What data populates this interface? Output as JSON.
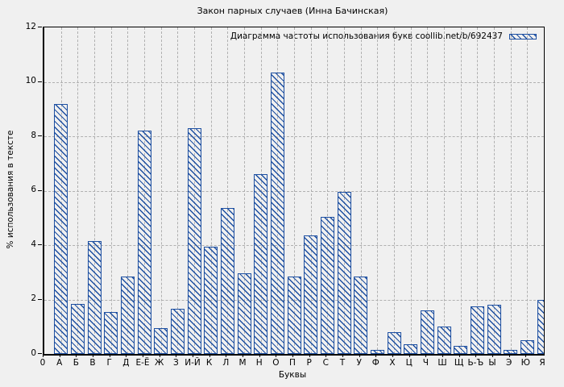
{
  "chart_data": {
    "type": "bar",
    "title": "Закон парных случаев (Инна Бачинская)",
    "legend_label": "Диаграмма частоты использования букв coollib.net/b/692437",
    "legend_position": "top-right-inside",
    "xlabel": "Буквы",
    "ylabel": "% использования в тексте",
    "x_origin_label": "0",
    "categories": [
      "А",
      "Б",
      "В",
      "Г",
      "Д",
      "Е-Ё",
      "Ж",
      "З",
      "И-Й",
      "К",
      "Л",
      "М",
      "Н",
      "О",
      "П",
      "Р",
      "С",
      "Т",
      "У",
      "Ф",
      "Х",
      "Ц",
      "Ч",
      "Ш",
      "Щ",
      "Ь-Ъ",
      "Ы",
      "Э",
      "Ю",
      "Я"
    ],
    "values": [
      9.2,
      1.85,
      4.15,
      1.55,
      2.85,
      8.2,
      0.95,
      1.65,
      8.3,
      3.95,
      5.35,
      2.95,
      6.6,
      10.35,
      2.85,
      4.35,
      5.05,
      5.95,
      2.85,
      0.15,
      0.8,
      0.35,
      1.6,
      1.0,
      0.3,
      1.75,
      1.8,
      0.15,
      0.5,
      2.0
    ],
    "ylim": [
      0,
      12
    ],
    "yticks": [
      0,
      2,
      4,
      6,
      8,
      10,
      12
    ],
    "grid": true,
    "hatch_style": "diagonal-backslash",
    "last_bar_clipped_at_right_border": true,
    "colors": {
      "bar_outline": "#1d4fa1",
      "bar_hatch": "#1d4fa1",
      "background": "#f0f0f0",
      "grid": "#b0b0b0",
      "axis": "#000000",
      "text": "#000000"
    }
  }
}
